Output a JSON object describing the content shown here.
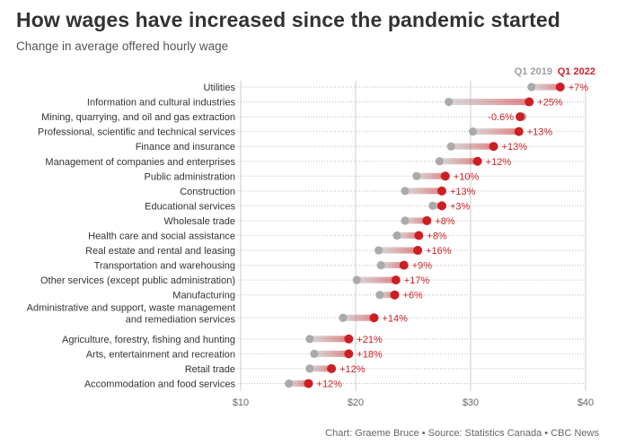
{
  "title": "How wages have increased since the pandemic started",
  "subtitle": "Change in average offered hourly wage",
  "footer": "Chart: Graeme Bruce • Source: Statistics Canada • CBC News",
  "colors": {
    "start": "#aaaaaa",
    "end": "#cc1f24",
    "grid": "#cccccc",
    "dots": "#bbbbbb",
    "change_text": "#cc1f24"
  },
  "chart_data": {
    "type": "dumbbell",
    "title": "How wages have increased since the pandemic started",
    "subtitle": "Change in average offered hourly wage",
    "legend": [
      "Q1 2019",
      "Q1 2022"
    ],
    "legend_position": "top-right",
    "xlim": [
      10,
      40
    ],
    "xticks": [
      10,
      20,
      30,
      40
    ],
    "xtick_labels": [
      "$10",
      "$20",
      "$30",
      "$40"
    ],
    "grid": true,
    "categories": [
      "Utilities",
      "Information and cultural industries",
      "Mining, quarrying, and oil and gas extraction",
      "Professional, scientific and technical services",
      "Finance and insurance",
      "Management of companies and enterprises",
      "Public administration",
      "Construction",
      "Educational services",
      "Wholesale trade",
      "Health care and social assistance",
      "Real estate and rental and leasing",
      "Transportation and warehousing",
      "Other services (except public administration)",
      "Manufacturing",
      "Administrative and support, waste management and remediation services",
      "Agriculture, forestry, fishing and hunting",
      "Arts, entertainment and recreation",
      "Retail trade",
      "Accommodation and food services"
    ],
    "category_label_lines": [
      [
        "Utilities"
      ],
      [
        "Information and cultural industries"
      ],
      [
        "Mining, quarrying, and oil and gas extraction"
      ],
      [
        "Professional, scientific and technical services"
      ],
      [
        "Finance and insurance"
      ],
      [
        "Management of companies and enterprises"
      ],
      [
        "Public administration"
      ],
      [
        "Construction"
      ],
      [
        "Educational services"
      ],
      [
        "Wholesale trade"
      ],
      [
        "Health care and social assistance"
      ],
      [
        "Real estate and rental and leasing"
      ],
      [
        "Transportation and warehousing"
      ],
      [
        "Other services (except public administration)"
      ],
      [
        "Manufacturing"
      ],
      [
        "Administrative and support, waste management",
        "and remediation services"
      ],
      [
        "Agriculture, forestry, fishing and hunting"
      ],
      [
        "Arts, entertainment and recreation"
      ],
      [
        "Retail trade"
      ],
      [
        "Accommodation and food services"
      ]
    ],
    "series": [
      {
        "name": "Q1 2019",
        "values": [
          35.3,
          28.1,
          34.5,
          30.2,
          28.3,
          27.3,
          25.3,
          24.3,
          26.7,
          24.3,
          23.6,
          22.0,
          22.2,
          20.1,
          22.1,
          18.9,
          16.0,
          16.4,
          16.0,
          14.2
        ]
      },
      {
        "name": "Q1 2022",
        "values": [
          37.8,
          35.1,
          34.3,
          34.2,
          32.0,
          30.6,
          27.8,
          27.5,
          27.5,
          26.2,
          25.5,
          25.4,
          24.2,
          23.5,
          23.4,
          21.6,
          19.4,
          19.4,
          17.9,
          15.9
        ]
      }
    ],
    "change_labels": [
      "+7%",
      "+25%",
      "-0.6%",
      "+13%",
      "+13%",
      "+12%",
      "+10%",
      "+13%",
      "+3%",
      "+8%",
      "+8%",
      "+16%",
      "+9%",
      "+17%",
      "+6%",
      "+14%",
      "+21%",
      "+18%",
      "+12%",
      "+12%"
    ],
    "change_label_side": [
      "right",
      "right",
      "left",
      "right",
      "right",
      "right",
      "right",
      "right",
      "right",
      "right",
      "right",
      "right",
      "right",
      "right",
      "right",
      "right",
      "right",
      "right",
      "right",
      "right"
    ]
  }
}
